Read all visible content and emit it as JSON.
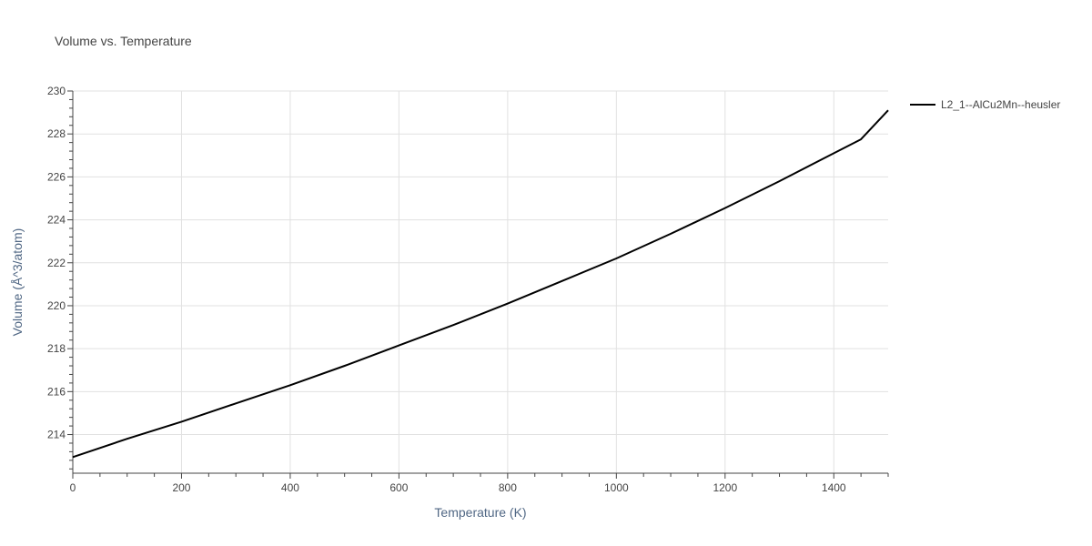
{
  "chart_data": {
    "type": "line",
    "title": "Volume vs. Temperature",
    "xlabel": "Temperature (K)",
    "ylabel": "Volume (Å^3/atom)",
    "xlim": [
      0,
      1500
    ],
    "ylim": [
      212.2,
      230
    ],
    "x_ticks": [
      0,
      200,
      400,
      600,
      800,
      1000,
      1200,
      1400
    ],
    "y_ticks": [
      214,
      216,
      218,
      220,
      222,
      224,
      226,
      228,
      230
    ],
    "grid": true,
    "legend_position": "top-right",
    "series": [
      {
        "name": "L2_1--AlCu2Mn--heusler",
        "color": "#000000",
        "x": [
          0,
          100,
          200,
          300,
          400,
          500,
          600,
          700,
          800,
          900,
          1000,
          1100,
          1200,
          1300,
          1400,
          1450,
          1500
        ],
        "y": [
          212.95,
          213.8,
          214.6,
          215.45,
          216.3,
          217.2,
          218.15,
          219.1,
          220.1,
          221.15,
          222.2,
          223.35,
          224.55,
          225.8,
          227.1,
          227.75,
          229.1
        ]
      }
    ]
  }
}
